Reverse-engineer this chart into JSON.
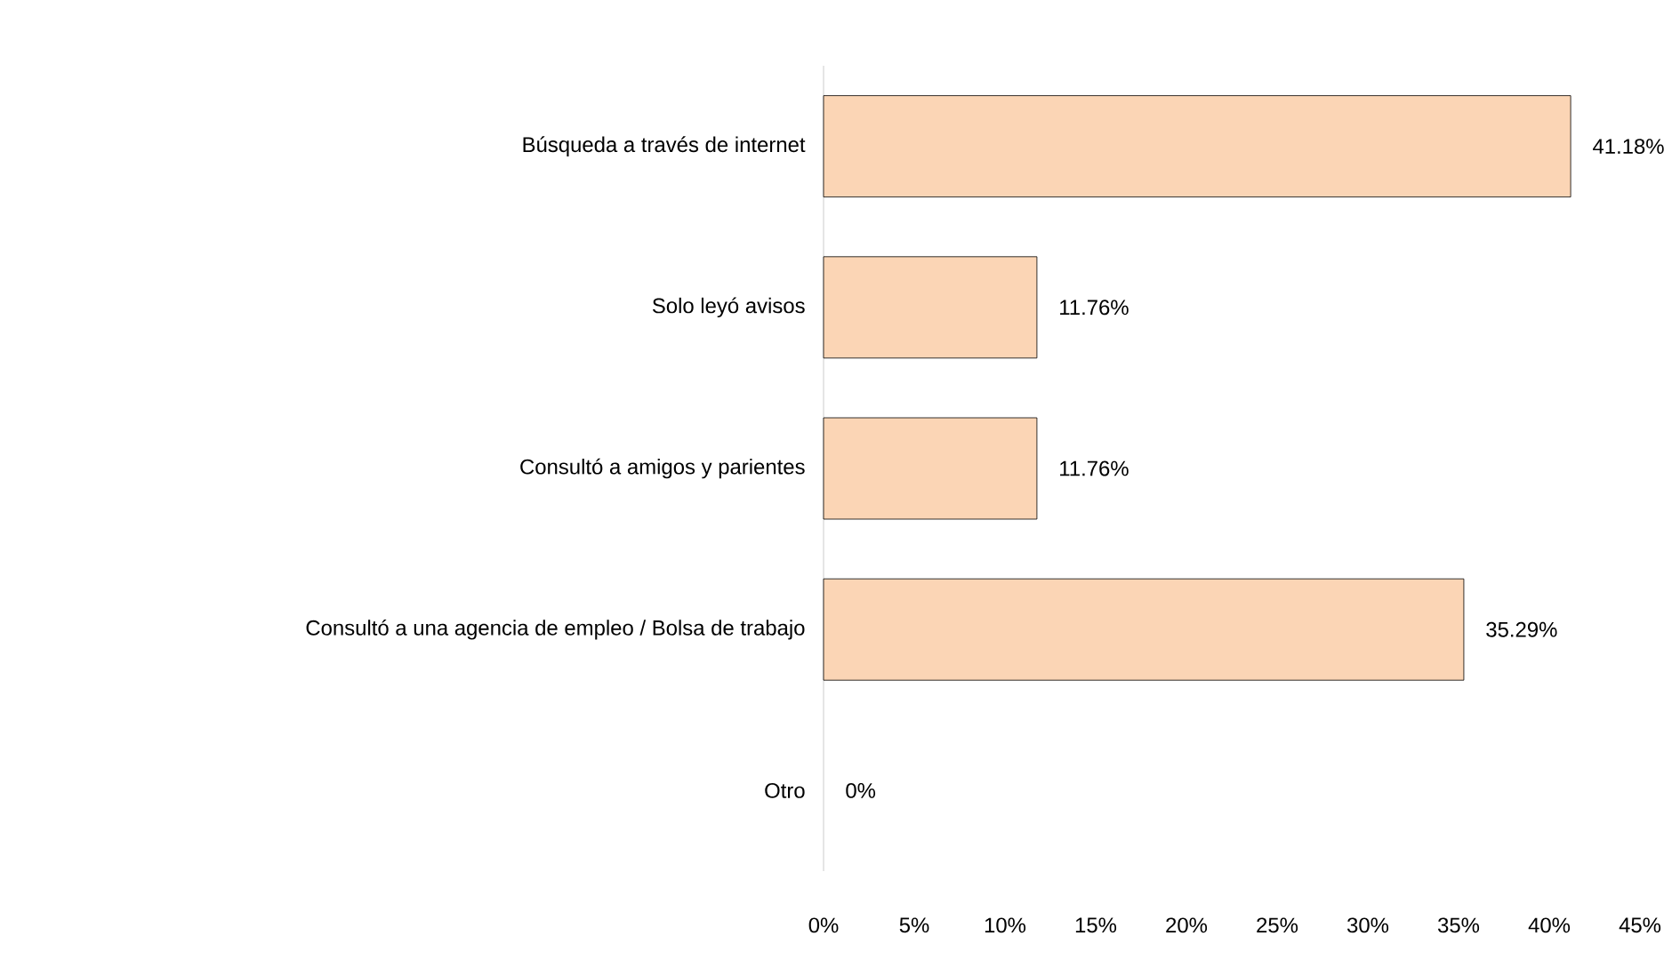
{
  "chart_data": {
    "type": "bar",
    "orientation": "horizontal",
    "categories": [
      "Búsqueda a través de internet",
      "Solo leyó avisos",
      "Consultó a amigos y parientes",
      "Consultó a una agencia de empleo / Bolsa de trabajo",
      "Otro"
    ],
    "values": [
      41.18,
      11.76,
      11.76,
      35.29,
      0
    ],
    "value_labels": [
      "41.18%",
      "11.76%",
      "11.76%",
      "35.29%",
      "0%"
    ],
    "color": "#fbd5b5",
    "xlim": [
      0,
      45
    ],
    "xticks": [
      {
        "value": 0,
        "label": "0%"
      },
      {
        "value": 5,
        "label": "5%"
      },
      {
        "value": 10,
        "label": "10%"
      },
      {
        "value": 15,
        "label": "15%"
      },
      {
        "value": 20,
        "label": "20%"
      },
      {
        "value": 25,
        "label": "25%"
      },
      {
        "value": 30,
        "label": "30%"
      },
      {
        "value": 35,
        "label": "35%"
      },
      {
        "value": 40,
        "label": "40%"
      },
      {
        "value": 45,
        "label": "45%"
      }
    ],
    "grid": false
  }
}
